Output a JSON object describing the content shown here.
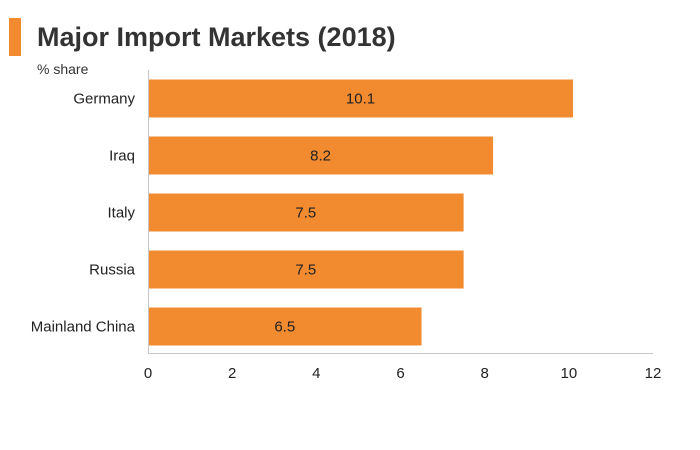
{
  "header": {
    "title": "Major Import Markets (2018)",
    "accent_color": "#F28A30"
  },
  "chart_data": {
    "type": "bar",
    "orientation": "horizontal",
    "title": "Major Import Markets (2018)",
    "subtitle": "% share",
    "categories": [
      "Germany",
      "Iraq",
      "Italy",
      "Russia",
      "Mainland China"
    ],
    "values": [
      10.1,
      8.2,
      7.5,
      7.5,
      6.5
    ],
    "data_labels": [
      "10.1",
      "8.2",
      "7.5",
      "7.5",
      "6.5"
    ],
    "xlim": [
      0,
      12
    ],
    "xticks": [
      0,
      2,
      4,
      6,
      8,
      10,
      12
    ],
    "bar_color": "#F28A30",
    "grid": false,
    "legend": "none"
  }
}
